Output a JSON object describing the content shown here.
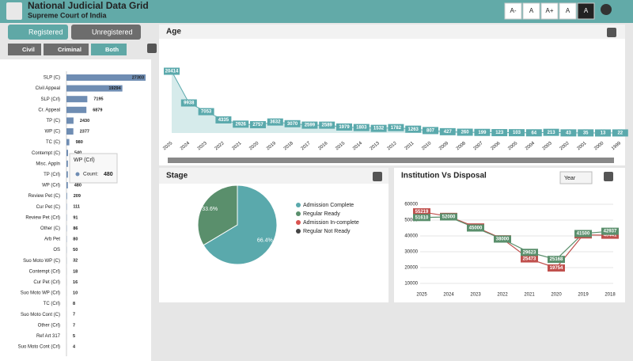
{
  "header": {
    "title": "National Judicial Data Grid",
    "subtitle": "Supreme Court of India",
    "font_buttons": [
      "A-",
      "A",
      "A+",
      "A",
      "A"
    ]
  },
  "nav": {
    "tabs": [
      "Registered",
      "Unregistered"
    ],
    "subtabs": [
      "Civil",
      "Criminal",
      "Both"
    ],
    "tooltip_field": "Count:",
    "select": "Year"
  },
  "chart_data": [
    {
      "type": "bar",
      "orientation": "horizontal",
      "color": "#6f8db3",
      "categories": [
        "SLP (C)",
        "Civil Appeal",
        "SLP (Crl)",
        "Cr. Appeal",
        "TP (C)",
        "WP (C)",
        "TC (C)",
        "Contempt (C)",
        "Misc. Appln",
        "TP (Crl)",
        "WP (Crl)",
        "Review Pet (C)",
        "Cur Pet (C)",
        "Review Pet (Crl)",
        "Other (C)",
        "Arb Pet",
        "OS",
        "Suo Moto WP (C)",
        "Contempt (Crl)",
        "Cur Pet (Crl)",
        "Suo Moto WP (Crl)",
        "TC (Crl)",
        "Suo Moto Cont (C)",
        "Other (Crl)",
        "Ref Art 317",
        "Suo Moto Cont (Crl)"
      ],
      "values": [
        27303,
        19294,
        7195,
        6879,
        2430,
        2377,
        980,
        540,
        500,
        490,
        480,
        209,
        111,
        91,
        86,
        80,
        50,
        32,
        18,
        16,
        10,
        8,
        7,
        7,
        5,
        4
      ]
    },
    {
      "type": "area",
      "title": "Age",
      "color": "#5aa9ac",
      "categories": [
        "2025",
        "2024",
        "2023",
        "2022",
        "2021",
        "2020",
        "2019",
        "2018",
        "2017",
        "2016",
        "2015",
        "2014",
        "2013",
        "2012",
        "2011",
        "2010",
        "2009",
        "2008",
        "2007",
        "2006",
        "2005",
        "2004",
        "2003",
        "2002",
        "2001",
        "2000",
        "1999"
      ],
      "values": [
        20414,
        9938,
        7053,
        4335,
        2926,
        2757,
        3632,
        3070,
        2599,
        2589,
        1979,
        1803,
        1532,
        1782,
        1263,
        807,
        427,
        260,
        199,
        123,
        103,
        64,
        213,
        43,
        35,
        13,
        22
      ]
    },
    {
      "type": "pie",
      "title": "Stage",
      "categories": [
        "Admission Complete",
        "Regular Ready",
        "Admission In-complete",
        "Regular Not Ready"
      ],
      "values": [
        66.4,
        33.6,
        0,
        0
      ],
      "value_labels": [
        "66.4%",
        "33.6%",
        null,
        null
      ],
      "colors": [
        "#5aa9ac",
        "#5a8f6c",
        "#d9534f",
        "#444444"
      ]
    },
    {
      "type": "line",
      "title": "Institution Vs Disposal",
      "categories": [
        "2025",
        "2024",
        "2023",
        "2022",
        "2021",
        "2020",
        "2019",
        "2018"
      ],
      "series": [
        {
          "color": "#c0504d",
          "values": [
            55219,
            52334,
            45669,
            38172,
            25473,
            19754,
            40633,
            40441
          ]
        },
        {
          "color": "#5a8f6c",
          "values": [
            51610,
            52000,
            45000,
            38000,
            29623,
            25168,
            41500,
            42937
          ]
        }
      ],
      "ylim": [
        10000,
        60000
      ],
      "yticks": [
        10000,
        20000,
        30000,
        40000,
        50000,
        60000
      ],
      "grid": true
    }
  ]
}
